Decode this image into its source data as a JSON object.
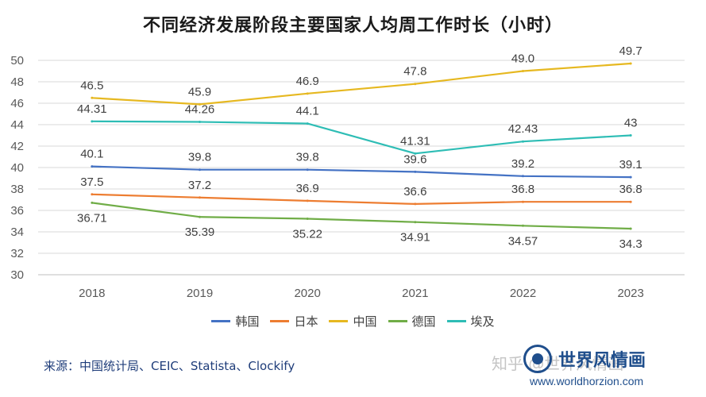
{
  "title": "不同经济发展阶段主要国家人均周工作时长（小时）",
  "source": "来源：中国统计局、CEIC、Statista、Clockify",
  "brand": {
    "name": "世界风情画",
    "watermark": "知乎 @世界风情画",
    "url": "www.worldhorzion.com"
  },
  "chart_data": {
    "type": "line",
    "title": "不同经济发展阶段主要国家人均周工作时长（小时）",
    "xlabel": "",
    "ylabel": "",
    "categories": [
      "2018",
      "2019",
      "2020",
      "2021",
      "2022",
      "2023"
    ],
    "ylim": [
      30,
      50
    ],
    "yticks": [
      "30",
      "32",
      "34",
      "36",
      "38",
      "40",
      "42",
      "44",
      "46",
      "48",
      "50"
    ],
    "grid": true,
    "legend_position": "bottom",
    "series": [
      {
        "name": "韩国",
        "color": "#4472c4",
        "values": [
          40.1,
          39.8,
          39.8,
          39.6,
          39.2,
          39.1
        ],
        "labels": [
          "40.1",
          "39.8",
          "39.8",
          "39.6",
          "39.2",
          "39.1"
        ],
        "label_side": "above"
      },
      {
        "name": "日本",
        "color": "#ed7d31",
        "values": [
          37.5,
          37.2,
          36.9,
          36.6,
          36.8,
          36.8
        ],
        "labels": [
          "37.5",
          "37.2",
          "36.9",
          "36.6",
          "36.8",
          "36.8"
        ],
        "label_side": "above"
      },
      {
        "name": "中国",
        "color": "#e6b820",
        "values": [
          46.5,
          45.9,
          46.9,
          47.8,
          49.0,
          49.7
        ],
        "labels": [
          "46.5",
          "45.9",
          "46.9",
          "47.8",
          "49.0",
          "49.7"
        ],
        "label_side": "above"
      },
      {
        "name": "德国",
        "color": "#70ad47",
        "values": [
          36.71,
          35.39,
          35.22,
          34.91,
          34.57,
          34.3
        ],
        "labels": [
          "36.71",
          "35.39",
          "35.22",
          "34.91",
          "34.57",
          "34.3"
        ],
        "label_side": "below"
      },
      {
        "name": "埃及",
        "color": "#2ebdb5",
        "values": [
          44.31,
          44.26,
          44.1,
          41.31,
          42.43,
          43
        ],
        "labels": [
          "44.31",
          "44.26",
          "44.1",
          "41.31",
          "42.43",
          "43"
        ],
        "label_side": "above"
      }
    ]
  }
}
